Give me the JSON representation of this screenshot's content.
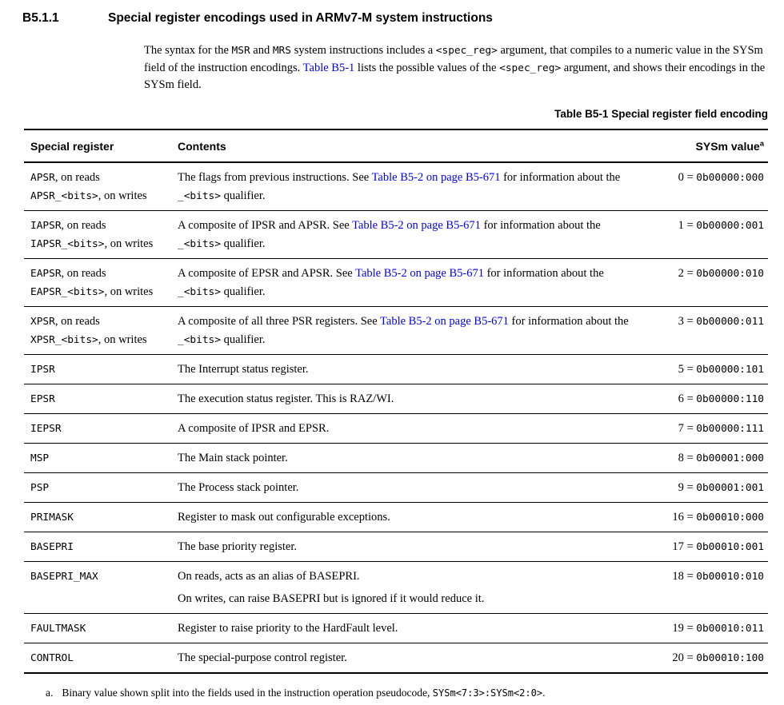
{
  "colors": {
    "link": "#0000ee",
    "text": "#000000",
    "rule": "#000000",
    "background": "#ffffff"
  },
  "heading": {
    "number": "B5.1.1",
    "title": "Special register encodings used in ARMv7-M system instructions"
  },
  "intro": [
    {
      "type": "text",
      "text": "The syntax for the "
    },
    {
      "type": "mono",
      "text": "MSR"
    },
    {
      "type": "text",
      "text": " and "
    },
    {
      "type": "mono",
      "text": "MRS"
    },
    {
      "type": "text",
      "text": " system instructions includes a "
    },
    {
      "type": "mono",
      "text": "<spec_reg>"
    },
    {
      "type": "text",
      "text": " argument, that compiles to a numeric value in the SYSm field of the instruction encodings. "
    },
    {
      "type": "link",
      "text": "Table B5-1"
    },
    {
      "type": "text",
      "text": " lists the possible values of the "
    },
    {
      "type": "mono",
      "text": "<spec_reg>"
    },
    {
      "type": "text",
      "text": " argument, and shows their encodings in the SYSm field."
    }
  ],
  "table": {
    "caption": "Table B5-1 Special register field encoding",
    "columns": {
      "register": "Special register",
      "contents": "Contents",
      "value": "SYSm value",
      "value_footnote_marker": "a"
    },
    "rows": [
      {
        "register": [
          [
            {
              "type": "mono",
              "text": "APSR"
            },
            {
              "type": "text",
              "text": ", on reads"
            }
          ],
          [
            {
              "type": "mono",
              "text": "APSR_<bits>"
            },
            {
              "type": "text",
              "text": ", on writes"
            }
          ]
        ],
        "contents": [
          [
            {
              "type": "text",
              "text": "The flags from previous instructions. See "
            },
            {
              "type": "link",
              "text": "Table B5-2 on page B5-671"
            },
            {
              "type": "text",
              "text": " for information about the "
            },
            {
              "type": "mono",
              "text": "_<bits>"
            },
            {
              "type": "text",
              "text": " qualifier."
            }
          ]
        ],
        "value_num": "0",
        "value_enc": "0b00000:000"
      },
      {
        "register": [
          [
            {
              "type": "mono",
              "text": "IAPSR"
            },
            {
              "type": "text",
              "text": ", on reads"
            }
          ],
          [
            {
              "type": "mono",
              "text": "IAPSR_<bits>"
            },
            {
              "type": "text",
              "text": ", on writes"
            }
          ]
        ],
        "contents": [
          [
            {
              "type": "text",
              "text": "A composite of IPSR and APSR. See "
            },
            {
              "type": "link",
              "text": "Table B5-2 on page B5-671"
            },
            {
              "type": "text",
              "text": " for information about the "
            },
            {
              "type": "mono",
              "text": "_<bits>"
            },
            {
              "type": "text",
              "text": " qualifier."
            }
          ]
        ],
        "value_num": "1",
        "value_enc": "0b00000:001"
      },
      {
        "register": [
          [
            {
              "type": "mono",
              "text": "EAPSR"
            },
            {
              "type": "text",
              "text": ", on reads"
            }
          ],
          [
            {
              "type": "mono",
              "text": "EAPSR_<bits>"
            },
            {
              "type": "text",
              "text": ", on writes"
            }
          ]
        ],
        "contents": [
          [
            {
              "type": "text",
              "text": "A composite of EPSR and APSR. See "
            },
            {
              "type": "link",
              "text": "Table B5-2 on page B5-671"
            },
            {
              "type": "text",
              "text": " for information about the "
            },
            {
              "type": "mono",
              "text": "_<bits>"
            },
            {
              "type": "text",
              "text": " qualifier."
            }
          ]
        ],
        "value_num": "2",
        "value_enc": "0b00000:010"
      },
      {
        "register": [
          [
            {
              "type": "mono",
              "text": "XPSR"
            },
            {
              "type": "text",
              "text": ", on reads"
            }
          ],
          [
            {
              "type": "mono",
              "text": "XPSR_<bits>"
            },
            {
              "type": "text",
              "text": ", on writes"
            }
          ]
        ],
        "contents": [
          [
            {
              "type": "text",
              "text": "A composite of all three PSR registers. See "
            },
            {
              "type": "link",
              "text": "Table B5-2 on page B5-671"
            },
            {
              "type": "text",
              "text": " for information about the "
            },
            {
              "type": "mono",
              "text": "_<bits>"
            },
            {
              "type": "text",
              "text": " qualifier."
            }
          ]
        ],
        "value_num": "3",
        "value_enc": "0b00000:011"
      },
      {
        "register": [
          [
            {
              "type": "mono",
              "text": "IPSR"
            }
          ]
        ],
        "contents": [
          [
            {
              "type": "text",
              "text": "The Interrupt status register."
            }
          ]
        ],
        "value_num": "5",
        "value_enc": "0b00000:101"
      },
      {
        "register": [
          [
            {
              "type": "mono",
              "text": "EPSR"
            }
          ]
        ],
        "contents": [
          [
            {
              "type": "text",
              "text": "The execution status register. This is RAZ/WI."
            }
          ]
        ],
        "value_num": "6",
        "value_enc": "0b00000:110"
      },
      {
        "register": [
          [
            {
              "type": "mono",
              "text": "IEPSR"
            }
          ]
        ],
        "contents": [
          [
            {
              "type": "text",
              "text": "A composite of IPSR and EPSR."
            }
          ]
        ],
        "value_num": "7",
        "value_enc": "0b00000:111"
      },
      {
        "register": [
          [
            {
              "type": "mono",
              "text": "MSP"
            }
          ]
        ],
        "contents": [
          [
            {
              "type": "text",
              "text": "The Main stack pointer."
            }
          ]
        ],
        "value_num": "8",
        "value_enc": "0b00001:000"
      },
      {
        "register": [
          [
            {
              "type": "mono",
              "text": "PSP"
            }
          ]
        ],
        "contents": [
          [
            {
              "type": "text",
              "text": "The Process stack pointer."
            }
          ]
        ],
        "value_num": "9",
        "value_enc": "0b00001:001"
      },
      {
        "register": [
          [
            {
              "type": "mono",
              "text": "PRIMASK"
            }
          ]
        ],
        "contents": [
          [
            {
              "type": "text",
              "text": "Register to mask out configurable exceptions."
            }
          ]
        ],
        "value_num": "16",
        "value_enc": "0b00010:000"
      },
      {
        "register": [
          [
            {
              "type": "mono",
              "text": "BASEPRI"
            }
          ]
        ],
        "contents": [
          [
            {
              "type": "text",
              "text": "The base priority register."
            }
          ]
        ],
        "value_num": "17",
        "value_enc": "0b00010:001"
      },
      {
        "register": [
          [
            {
              "type": "mono",
              "text": "BASEPRI_MAX"
            }
          ]
        ],
        "contents": [
          [
            {
              "type": "text",
              "text": "On reads, acts as an alias of BASEPRI."
            }
          ],
          [
            {
              "type": "text",
              "text": "On writes, can raise BASEPRI but is ignored if it would reduce it."
            }
          ]
        ],
        "value_num": "18",
        "value_enc": "0b00010:010"
      },
      {
        "register": [
          [
            {
              "type": "mono",
              "text": "FAULTMASK"
            }
          ]
        ],
        "contents": [
          [
            {
              "type": "text",
              "text": "Register to raise priority to the HardFault level."
            }
          ]
        ],
        "value_num": "19",
        "value_enc": "0b00010:011"
      },
      {
        "register": [
          [
            {
              "type": "mono",
              "text": "CONTROL"
            }
          ]
        ],
        "contents": [
          [
            {
              "type": "text",
              "text": "The special-purpose control register."
            }
          ]
        ],
        "value_num": "20",
        "value_enc": "0b00010:100"
      }
    ],
    "value_separator": " = ",
    "footnote": {
      "marker": "a.",
      "segments": [
        {
          "type": "text",
          "text": "Binary value shown split into the fields used in the instruction operation pseudocode, "
        },
        {
          "type": "mono",
          "text": "SYSm<7:3>:SYSm<2:0>"
        },
        {
          "type": "text",
          "text": "."
        }
      ]
    }
  }
}
